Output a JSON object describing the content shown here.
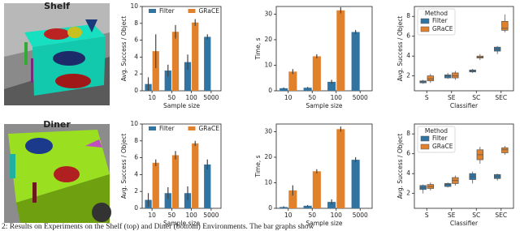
{
  "images": [
    {
      "label": "Shelf"
    },
    {
      "label": "Diner"
    }
  ],
  "caption": "2: Results on Experiments on the Shelf (top) and Diner (bottom) Environments. The bar graphs show",
  "chart_data": [
    {
      "type": "bar",
      "categories": [
        "10",
        "50",
        "100",
        "5000"
      ],
      "x_label": "Sample size",
      "y_label": "Avg. Success / Object",
      "ylim": [
        0,
        10
      ],
      "yticks": [
        0,
        2,
        4,
        6,
        8,
        10
      ],
      "legend": "top",
      "series": [
        {
          "name": "Filter",
          "color": "#3274a1",
          "values": [
            0.8,
            2.4,
            3.4,
            6.4
          ],
          "errors": [
            0.8,
            0.7,
            0.9,
            0.3
          ]
        },
        {
          "name": "GRaCE",
          "color": "#e1812c",
          "values": [
            4.7,
            7.0,
            8.1,
            null
          ],
          "errors": [
            2.0,
            0.8,
            0.4,
            null
          ]
        }
      ]
    },
    {
      "type": "bar",
      "categories": [
        "10",
        "50",
        "100",
        "5000"
      ],
      "x_label": "Sample size",
      "y_label": "Time, s",
      "ylim": [
        0,
        33
      ],
      "yticks": [
        0,
        10,
        20,
        30
      ],
      "legend": "none",
      "series": [
        {
          "name": "Filter",
          "color": "#3274a1",
          "values": [
            1.0,
            1.2,
            3.5,
            23
          ],
          "errors": [
            0.3,
            0.3,
            0.8,
            0.8
          ]
        },
        {
          "name": "GRaCE",
          "color": "#e1812c",
          "values": [
            7.5,
            13.5,
            31.5,
            null
          ],
          "errors": [
            1.0,
            0.8,
            1.2,
            null
          ]
        }
      ]
    },
    {
      "type": "box",
      "categories": [
        "S",
        "SE",
        "SC",
        "SEC"
      ],
      "x_label": "Classifier",
      "y_label": "Avg. Success / Object",
      "ylim": [
        0.5,
        9
      ],
      "yticks": [
        2,
        4,
        6,
        8
      ],
      "legend": "upper left",
      "legend_title": "Method",
      "series": [
        {
          "name": "Filter",
          "color": "#3274a1",
          "values": [
            {
              "low": 1.2,
              "q1": 1.3,
              "median": 1.4,
              "q3": 1.5,
              "high": 1.6
            },
            {
              "low": 1.7,
              "q1": 1.8,
              "median": 2.0,
              "q3": 2.1,
              "high": 2.3
            },
            {
              "low": 2.3,
              "q1": 2.4,
              "median": 2.5,
              "q3": 2.6,
              "high": 2.7
            },
            {
              "low": 4.2,
              "q1": 4.5,
              "median": 4.7,
              "q3": 4.9,
              "high": 5.0
            }
          ]
        },
        {
          "name": "GRaCE",
          "color": "#e1812c",
          "values": [
            {
              "low": 1.3,
              "q1": 1.5,
              "median": 1.7,
              "q3": 2.0,
              "high": 2.2
            },
            {
              "low": 1.6,
              "q1": 1.8,
              "median": 2.0,
              "q3": 2.3,
              "high": 2.5
            },
            {
              "low": 3.6,
              "q1": 3.8,
              "median": 3.9,
              "q3": 4.0,
              "high": 4.2
            },
            {
              "low": 6.4,
              "q1": 6.6,
              "median": 6.8,
              "q3": 7.5,
              "high": 8.2
            }
          ]
        }
      ]
    },
    {
      "type": "bar",
      "categories": [
        "10",
        "50",
        "100",
        "5000"
      ],
      "x_label": "Sample size",
      "y_label": "Avg. Success / Object",
      "ylim": [
        0,
        10
      ],
      "yticks": [
        0,
        2,
        4,
        6,
        8,
        10
      ],
      "legend": "top",
      "series": [
        {
          "name": "Filter",
          "color": "#3274a1",
          "values": [
            1.0,
            1.8,
            1.8,
            5.2
          ],
          "errors": [
            0.8,
            0.7,
            0.8,
            0.6
          ]
        },
        {
          "name": "GRaCE",
          "color": "#e1812c",
          "values": [
            5.4,
            6.3,
            7.7,
            null
          ],
          "errors": [
            0.4,
            0.5,
            0.3,
            null
          ]
        }
      ]
    },
    {
      "type": "bar",
      "categories": [
        "10",
        "50",
        "100",
        "5000"
      ],
      "x_label": "Sample size",
      "y_label": "Time, s",
      "ylim": [
        0,
        33
      ],
      "yticks": [
        0,
        10,
        20,
        30
      ],
      "legend": "none",
      "series": [
        {
          "name": "Filter",
          "color": "#3274a1",
          "values": [
            0.5,
            1.0,
            2.5,
            19
          ],
          "errors": [
            0.3,
            0.3,
            1.0,
            1.0
          ]
        },
        {
          "name": "GRaCE",
          "color": "#e1812c",
          "values": [
            7.0,
            14.5,
            31.0,
            null
          ],
          "errors": [
            2.0,
            0.8,
            1.0,
            null
          ]
        }
      ]
    },
    {
      "type": "box",
      "categories": [
        "S",
        "SE",
        "SC",
        "SEC"
      ],
      "x_label": "Classifier",
      "y_label": "Avg. Success / Object",
      "ylim": [
        0.5,
        9
      ],
      "yticks": [
        2,
        4,
        6,
        8
      ],
      "legend": "upper left",
      "legend_title": "Method",
      "series": [
        {
          "name": "Filter",
          "color": "#3274a1",
          "values": [
            {
              "low": 2.0,
              "q1": 2.4,
              "median": 2.6,
              "q3": 2.8,
              "high": 2.9
            },
            {
              "low": 2.6,
              "q1": 2.7,
              "median": 2.9,
              "q3": 3.0,
              "high": 3.1
            },
            {
              "low": 3.0,
              "q1": 3.4,
              "median": 3.7,
              "q3": 4.0,
              "high": 4.2
            },
            {
              "low": 3.3,
              "q1": 3.5,
              "median": 3.7,
              "q3": 3.9,
              "high": 4.0
            }
          ]
        },
        {
          "name": "GRaCE",
          "color": "#e1812c",
          "values": [
            {
              "low": 2.3,
              "q1": 2.5,
              "median": 2.7,
              "q3": 2.9,
              "high": 3.1
            },
            {
              "low": 2.8,
              "q1": 3.0,
              "median": 3.3,
              "q3": 3.6,
              "high": 3.8
            },
            {
              "low": 5.0,
              "q1": 5.4,
              "median": 5.9,
              "q3": 6.4,
              "high": 6.7
            },
            {
              "low": 5.9,
              "q1": 6.1,
              "median": 6.4,
              "q3": 6.6,
              "high": 6.8
            }
          ]
        }
      ]
    }
  ]
}
